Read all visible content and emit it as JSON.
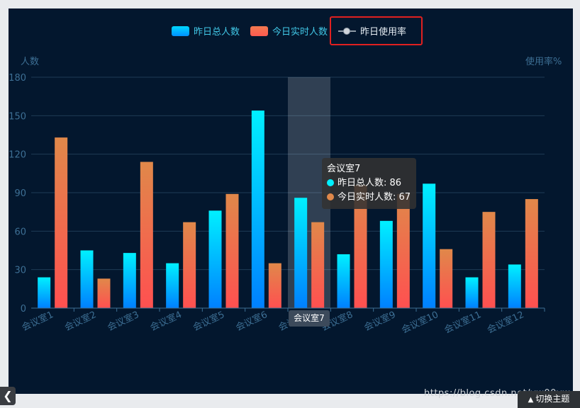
{
  "chart_data": {
    "type": "bar",
    "categories": [
      "会议室1",
      "会议室2",
      "会议室3",
      "会议室4",
      "会议室5",
      "会议室6",
      "会议室7",
      "会议室8",
      "会议室9",
      "会议室10",
      "会议室11",
      "会议室12"
    ],
    "series": [
      {
        "name": "昨日总人数",
        "values": [
          24,
          45,
          43,
          35,
          76,
          154,
          86,
          42,
          68,
          97,
          24,
          34
        ]
      },
      {
        "name": "今日实时人数",
        "values": [
          133,
          23,
          114,
          67,
          89,
          35,
          67,
          96,
          89,
          46,
          75,
          85
        ]
      }
    ],
    "line_series_legend": "昨日使用率",
    "ylabel_left": "人数",
    "ylabel_right": "使用率%",
    "ylim": [
      0,
      180
    ],
    "yticks": [
      "0",
      "30",
      "60",
      "90",
      "120",
      "150",
      "180"
    ],
    "grid": true,
    "legend_position": "top-center",
    "colors": {
      "background": "#03172e",
      "series1_top": "#00f0ff",
      "series1_bottom": "#0080ff",
      "series2_top": "#e0884a",
      "series2_bottom": "#ff5050",
      "axis_text": "#3d6f94",
      "grid": "#1f3b56"
    }
  },
  "tooltip": {
    "title": "会议室7",
    "rows": [
      {
        "label": "昨日总人数: 86",
        "color": "#00f0ff"
      },
      {
        "label": "今日实时人数: 67",
        "color": "#e0884a"
      }
    ]
  },
  "axis_pointer_label": "会议室7",
  "watermark": "https://blog.csdn.net/yw00yw",
  "theme_button": "切换主题",
  "back_button_icon": "chevron-left-icon"
}
